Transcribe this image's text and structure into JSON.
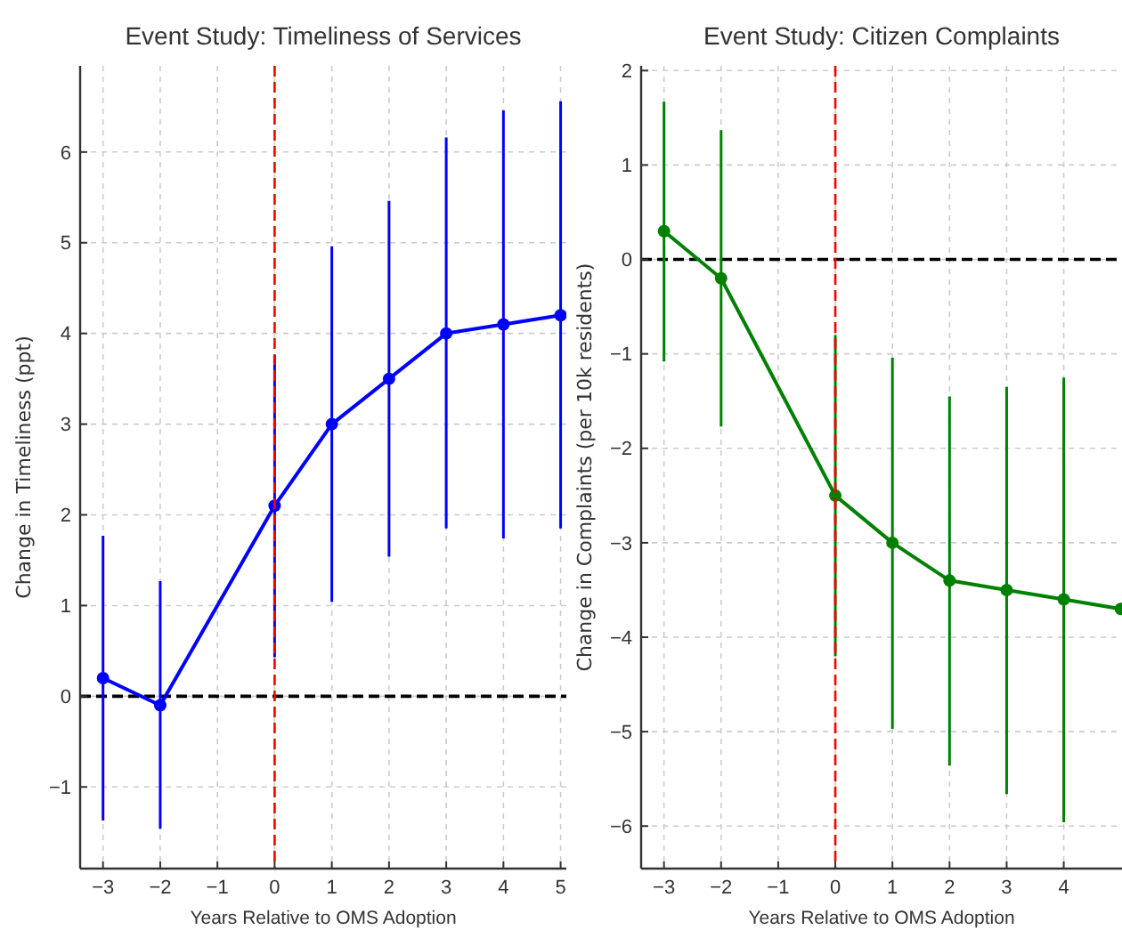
{
  "chart_data": [
    {
      "type": "line",
      "title": "Event Study: Timeliness of Services",
      "xlabel": "Years Relative to OMS Adoption",
      "ylabel": "Change in Timeliness (ppt)",
      "x": [
        -3,
        -2,
        0,
        1,
        2,
        3,
        4,
        5
      ],
      "series": [
        {
          "color": "#0000ff",
          "values": [
            0.2,
            -0.1,
            2.1,
            3.0,
            3.5,
            4.0,
            4.1,
            4.2
          ],
          "errors": [
            [
              -1.37,
              1.77
            ],
            [
              -1.46,
              1.27
            ],
            [
              0.43,
              3.76
            ],
            [
              1.04,
              4.96
            ],
            [
              1.54,
              5.46
            ],
            [
              1.85,
              6.16
            ],
            [
              1.74,
              6.46
            ],
            [
              1.85,
              6.56
            ]
          ]
        }
      ],
      "xlim": [
        -3.4,
        5.1
      ],
      "ylim": [
        -1.9,
        6.95
      ],
      "xticks": [
        -3,
        -2,
        -1,
        0,
        1,
        2,
        3,
        4,
        5
      ],
      "yticks": [
        -1,
        0,
        1,
        2,
        3,
        4,
        5,
        6
      ],
      "grid": true,
      "marker": "circle",
      "ref_lines": [
        {
          "axis": "x",
          "value": 0,
          "color": "#ff0000",
          "line_style": "dashed"
        },
        {
          "axis": "y",
          "value": 0,
          "color": "#000000",
          "line_style": "dashed"
        }
      ]
    },
    {
      "type": "line",
      "title": "Event Study: Citizen Complaints",
      "xlabel": "Years Relative to OMS Adoption",
      "ylabel": "Change in Complaints (per 10k residents)",
      "x": [
        -3,
        -2,
        0,
        1,
        2,
        3,
        4,
        5
      ],
      "series": [
        {
          "color": "#008000",
          "values": [
            0.3,
            -0.2,
            -2.5,
            -3.0,
            -3.4,
            -3.5,
            -3.6,
            -3.7
          ],
          "errors": [
            [
              -1.08,
              1.67
            ],
            [
              -1.77,
              1.37
            ],
            [
              -4.2,
              -0.8
            ],
            [
              -4.97,
              -1.04
            ],
            [
              -5.36,
              -1.45
            ],
            [
              -5.66,
              -1.35
            ],
            [
              -5.96,
              -1.25
            ],
            null
          ]
        }
      ],
      "xlim": [
        -3.4,
        5.02
      ],
      "ylim": [
        -6.45,
        2.05
      ],
      "xticks": [
        -3,
        -2,
        -1,
        0,
        1,
        2,
        3,
        4
      ],
      "yticks": [
        -6,
        -5,
        -4,
        -3,
        -2,
        -1,
        0,
        1,
        2
      ],
      "grid": true,
      "marker": "circle",
      "ref_lines": [
        {
          "axis": "x",
          "value": 0,
          "color": "#ff0000",
          "line_style": "dashed"
        },
        {
          "axis": "y",
          "value": 0,
          "color": "#000000",
          "line_style": "dashed"
        }
      ]
    }
  ]
}
